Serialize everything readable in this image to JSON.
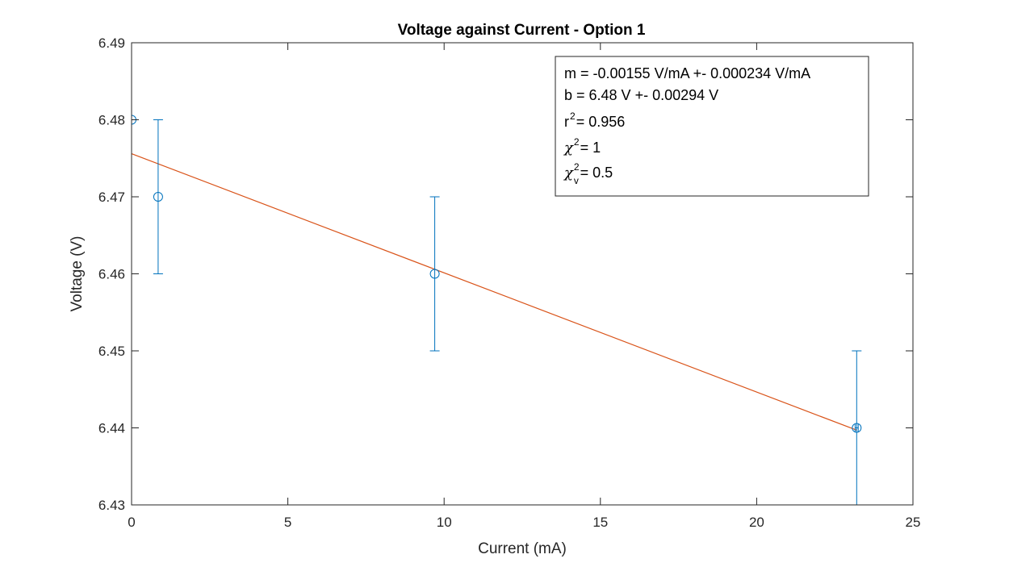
{
  "chart_data": {
    "type": "scatter",
    "title": "Voltage against Current - Option 1",
    "xlabel": "Current (mA)",
    "ylabel": "Voltage (V)",
    "xlim": [
      0,
      25
    ],
    "ylim": [
      6.43,
      6.49
    ],
    "x_ticks": [
      0,
      5,
      10,
      15,
      20,
      25
    ],
    "y_ticks": [
      "6.43",
      "6.44",
      "6.45",
      "6.46",
      "6.47",
      "6.48",
      "6.49"
    ],
    "grid": false,
    "series": [
      {
        "type": "errorbar",
        "x": [
          0,
          0.85,
          9.7,
          23.2
        ],
        "y": [
          6.48,
          6.47,
          6.46,
          6.44
        ],
        "yerr": [
          0.01,
          0.01,
          0.01,
          0.01
        ],
        "xerr": [
          0,
          0,
          0,
          0.05
        ],
        "marker": "circle",
        "color": "#0072BD"
      },
      {
        "type": "line",
        "x": [
          0,
          23.2
        ],
        "y": [
          6.4756,
          6.4397
        ],
        "color": "#D95319"
      }
    ],
    "annotation": {
      "placement": "top-right",
      "lines": [
        {
          "main": "m = -0.00155 V/mA +- 0.000234 V/mA"
        },
        {
          "main": "b = 6.48 V +- 0.00294 V"
        },
        {
          "main": "r",
          "sup": "2",
          "tail": " = 0.956"
        },
        {
          "main": "χ",
          "sup": "2",
          "tail": " = 1"
        },
        {
          "main": "χ",
          "sup": "2",
          "sub": "v",
          "tail": " = 0.5"
        }
      ]
    }
  }
}
